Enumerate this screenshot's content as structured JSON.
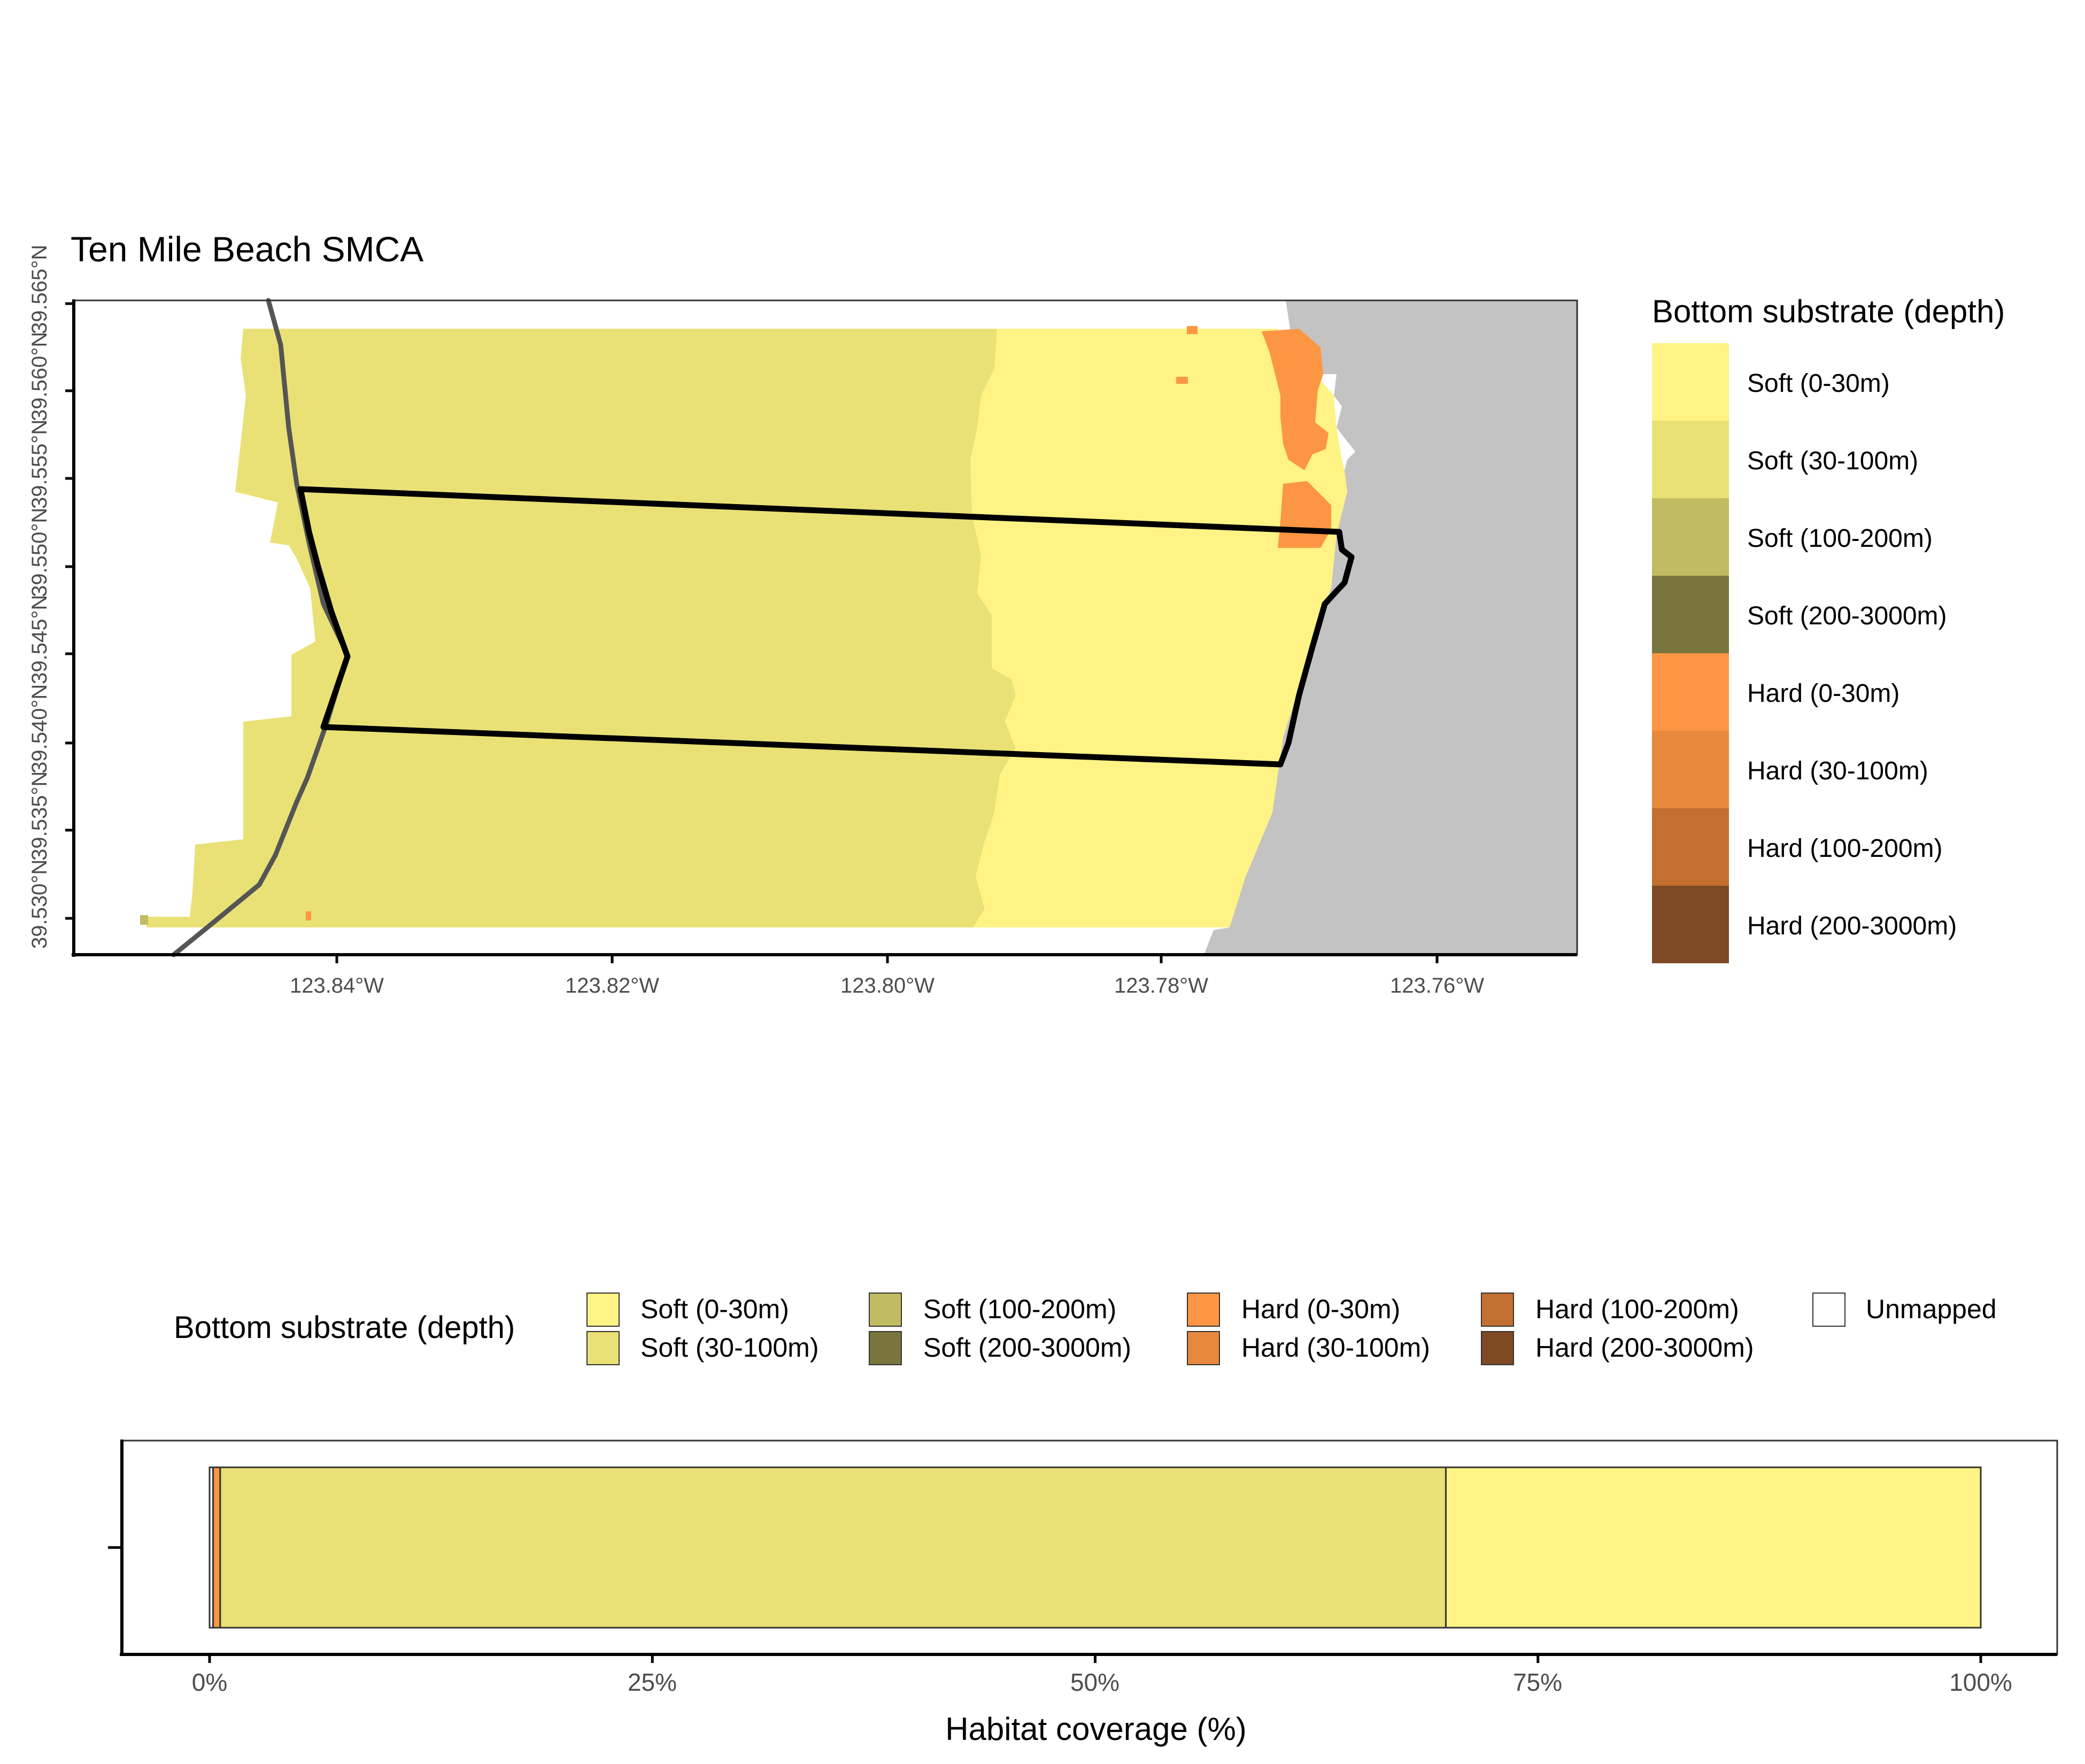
{
  "map": {
    "title": "Ten Mile Beach SMCA",
    "y_tick_labels": [
      "39.565°N",
      "39.560°N",
      "39.555°N",
      "39.550°N",
      "39.545°N",
      "39.540°N",
      "39.535°N",
      "39.530°N"
    ],
    "x_tick_labels": [
      "123.84°W",
      "123.82°W",
      "123.80°W",
      "123.78°W",
      "123.76°W"
    ],
    "colors": {
      "soft_0_30": "#FEF384",
      "soft_30_100": "#E9E175",
      "soft_100_200": "#C1BC61",
      "soft_200_3000": "#78763C",
      "hard_0_30": "#FC9643",
      "hard_30_100": "#E8883C",
      "hard_100_200": "#C26F31",
      "hard_200_3000": "#7E4A23",
      "land": "#C3C3C3",
      "boundary": "#000000",
      "state_waters_line": "#555555"
    }
  },
  "legend_map": {
    "title": "Bottom substrate (depth)",
    "items": [
      {
        "label": "Soft (0-30m)",
        "color": "#FEF384"
      },
      {
        "label": "Soft (30-100m)",
        "color": "#E9E175"
      },
      {
        "label": "Soft (100-200m)",
        "color": "#C1BC61"
      },
      {
        "label": "Soft (200-3000m)",
        "color": "#78763C"
      },
      {
        "label": "Hard (0-30m)",
        "color": "#FC9643"
      },
      {
        "label": "Hard (30-100m)",
        "color": "#E8883C"
      },
      {
        "label": "Hard (100-200m)",
        "color": "#C26F31"
      },
      {
        "label": "Hard (200-3000m)",
        "color": "#7E4A23"
      }
    ]
  },
  "legend_bar": {
    "title": "Bottom substrate (depth)",
    "items": [
      {
        "label": "Soft (0-30m)",
        "color": "#FEF384"
      },
      {
        "label": "Soft (30-100m)",
        "color": "#E9E175"
      },
      {
        "label": "Soft (100-200m)",
        "color": "#C1BC61"
      },
      {
        "label": "Soft (200-3000m)",
        "color": "#78763C"
      },
      {
        "label": "Hard (0-30m)",
        "color": "#FC9643"
      },
      {
        "label": "Hard (30-100m)",
        "color": "#E8883C"
      },
      {
        "label": "Hard (100-200m)",
        "color": "#C26F31"
      },
      {
        "label": "Hard (200-3000m)",
        "color": "#7E4A23"
      },
      {
        "label": "Unmapped",
        "color": "#FFFFFF"
      }
    ]
  },
  "bar_chart": {
    "xlabel": "Habitat coverage (%)",
    "tick_labels": [
      "0%",
      "25%",
      "50%",
      "75%",
      "100%"
    ]
  },
  "chart_data": {
    "type": "bar",
    "orientation": "horizontal",
    "stacked": true,
    "xlabel": "Habitat coverage (%)",
    "xlim": [
      0,
      100
    ],
    "series": [
      {
        "name": "Unmapped",
        "value": 0.2,
        "color": "#FFFFFF"
      },
      {
        "name": "Hard (0-30m)",
        "value": 0.4,
        "color": "#FC9643"
      },
      {
        "name": "Soft (30-100m)",
        "value": 69.2,
        "color": "#E9E175"
      },
      {
        "name": "Soft (0-30m)",
        "value": 30.2,
        "color": "#FEF384"
      }
    ]
  }
}
